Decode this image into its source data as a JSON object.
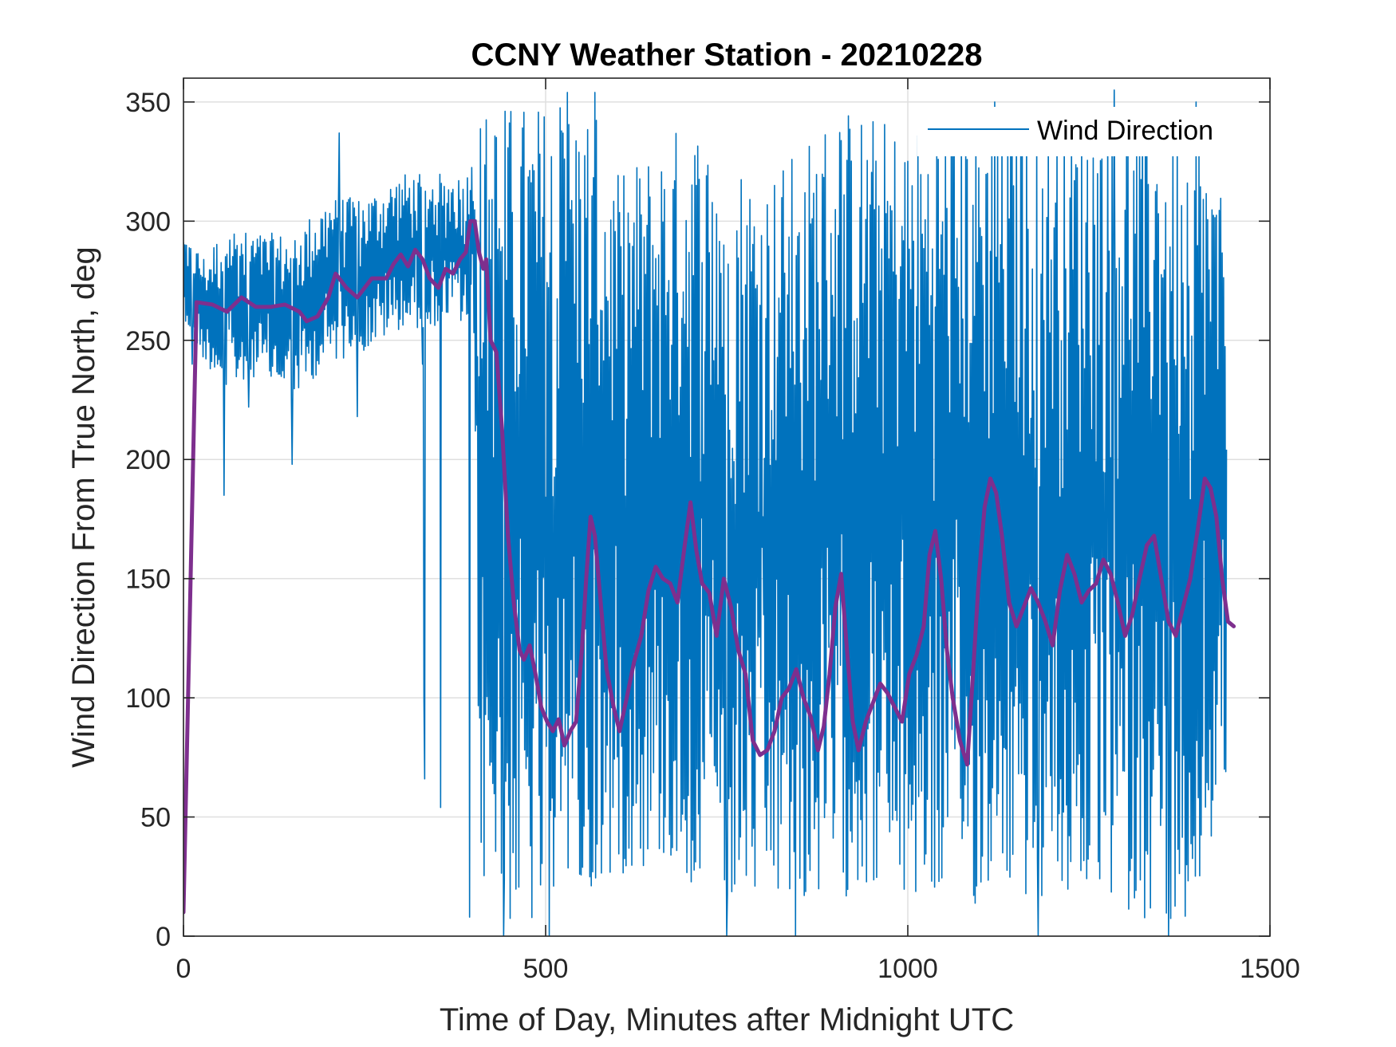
{
  "chart_data": {
    "type": "line",
    "title": "CCNY Weather Station - 20210228",
    "xlabel": "Time of Day, Minutes after Midnight UTC",
    "ylabel": "Wind Direction From True North, deg",
    "xlim": [
      0,
      1500
    ],
    "ylim": [
      0,
      360
    ],
    "xticks": [
      0,
      500,
      1000,
      1500
    ],
    "yticks": [
      0,
      50,
      100,
      150,
      200,
      250,
      300,
      350
    ],
    "grid": true,
    "legend_position": "top-right",
    "series": [
      {
        "name": "Wind Direction",
        "color": "#0072BD",
        "style": "thin",
        "envelope": [
          [
            0,
            260,
            295
          ],
          [
            30,
            240,
            285
          ],
          [
            60,
            230,
            300
          ],
          [
            100,
            235,
            295
          ],
          [
            150,
            225,
            295
          ],
          [
            200,
            240,
            310
          ],
          [
            250,
            245,
            310
          ],
          [
            300,
            255,
            320
          ],
          [
            340,
            255,
            320
          ],
          [
            370,
            260,
            320
          ],
          [
            390,
            255,
            320
          ],
          [
            400,
            250,
            330
          ],
          [
            410,
            20,
            345
          ],
          [
            440,
            5,
            350
          ],
          [
            480,
            0,
            350
          ],
          [
            520,
            5,
            350
          ],
          [
            560,
            10,
            350
          ],
          [
            600,
            25,
            320
          ],
          [
            660,
            30,
            335
          ],
          [
            700,
            20,
            345
          ],
          [
            760,
            10,
            330
          ],
          [
            800,
            10,
            320
          ],
          [
            850,
            10,
            330
          ],
          [
            900,
            15,
            350
          ],
          [
            950,
            20,
            345
          ],
          [
            1000,
            10,
            340
          ],
          [
            1050,
            15,
            345
          ],
          [
            1100,
            10,
            350
          ],
          [
            1150,
            15,
            350
          ],
          [
            1200,
            10,
            345
          ],
          [
            1250,
            15,
            350
          ],
          [
            1300,
            10,
            345
          ],
          [
            1350,
            5,
            350
          ],
          [
            1400,
            10,
            350
          ],
          [
            1440,
            60,
            300
          ]
        ],
        "spikes": [
          [
            12,
            240
          ],
          [
            56,
            185
          ],
          [
            90,
            222
          ],
          [
            150,
            198
          ],
          [
            215,
            337
          ],
          [
            240,
            218
          ],
          [
            330,
            325
          ],
          [
            330,
            240
          ],
          [
            332,
            99
          ],
          [
            333,
            66
          ],
          [
            355,
            54
          ],
          [
            395,
            8
          ],
          [
            442,
            0
          ],
          [
            505,
            0
          ],
          [
            530,
            354
          ],
          [
            568,
            354
          ],
          [
            750,
            0
          ],
          [
            845,
            0
          ],
          [
            1120,
            350
          ],
          [
            1180,
            0
          ],
          [
            1285,
            355
          ],
          [
            1360,
            0
          ],
          [
            1398,
            350
          ]
        ]
      },
      {
        "name": "",
        "color": "#7E2F8E",
        "style": "thick",
        "points": [
          [
            0,
            10
          ],
          [
            18,
            266
          ],
          [
            40,
            265
          ],
          [
            60,
            262
          ],
          [
            80,
            268
          ],
          [
            100,
            264
          ],
          [
            120,
            264
          ],
          [
            140,
            265
          ],
          [
            160,
            262
          ],
          [
            170,
            258
          ],
          [
            185,
            260
          ],
          [
            200,
            268
          ],
          [
            210,
            278
          ],
          [
            225,
            272
          ],
          [
            240,
            268
          ],
          [
            260,
            276
          ],
          [
            280,
            276
          ],
          [
            290,
            282
          ],
          [
            300,
            286
          ],
          [
            310,
            281
          ],
          [
            320,
            288
          ],
          [
            330,
            284
          ],
          [
            340,
            276
          ],
          [
            352,
            272
          ],
          [
            362,
            280
          ],
          [
            372,
            278
          ],
          [
            382,
            284
          ],
          [
            390,
            287
          ],
          [
            396,
            300
          ],
          [
            402,
            300
          ],
          [
            408,
            287
          ],
          [
            414,
            280
          ],
          [
            418,
            284
          ],
          [
            424,
            250
          ],
          [
            432,
            245
          ],
          [
            440,
            212
          ],
          [
            448,
            168
          ],
          [
            456,
            140
          ],
          [
            464,
            120
          ],
          [
            470,
            116
          ],
          [
            478,
            122
          ],
          [
            486,
            110
          ],
          [
            494,
            96
          ],
          [
            502,
            90
          ],
          [
            510,
            86
          ],
          [
            518,
            91
          ],
          [
            526,
            80
          ],
          [
            534,
            86
          ],
          [
            542,
            90
          ],
          [
            550,
            120
          ],
          [
            556,
            150
          ],
          [
            562,
            176
          ],
          [
            568,
            168
          ],
          [
            576,
            140
          ],
          [
            584,
            112
          ],
          [
            594,
            96
          ],
          [
            602,
            86
          ],
          [
            612,
            100
          ],
          [
            622,
            115
          ],
          [
            632,
            126
          ],
          [
            642,
            145
          ],
          [
            652,
            155
          ],
          [
            662,
            150
          ],
          [
            672,
            148
          ],
          [
            682,
            140
          ],
          [
            692,
            164
          ],
          [
            700,
            182
          ],
          [
            708,
            162
          ],
          [
            716,
            148
          ],
          [
            726,
            144
          ],
          [
            736,
            126
          ],
          [
            746,
            150
          ],
          [
            756,
            138
          ],
          [
            766,
            120
          ],
          [
            776,
            110
          ],
          [
            786,
            82
          ],
          [
            796,
            76
          ],
          [
            806,
            78
          ],
          [
            816,
            86
          ],
          [
            826,
            100
          ],
          [
            836,
            104
          ],
          [
            846,
            112
          ],
          [
            856,
            100
          ],
          [
            866,
            92
          ],
          [
            876,
            78
          ],
          [
            884,
            88
          ],
          [
            892,
            110
          ],
          [
            900,
            138
          ],
          [
            908,
            152
          ],
          [
            916,
            120
          ],
          [
            924,
            90
          ],
          [
            932,
            78
          ],
          [
            942,
            90
          ],
          [
            952,
            98
          ],
          [
            962,
            106
          ],
          [
            972,
            102
          ],
          [
            982,
            96
          ],
          [
            992,
            90
          ],
          [
            1002,
            110
          ],
          [
            1012,
            118
          ],
          [
            1022,
            130
          ],
          [
            1030,
            160
          ],
          [
            1038,
            170
          ],
          [
            1046,
            150
          ],
          [
            1054,
            120
          ],
          [
            1062,
            100
          ],
          [
            1072,
            82
          ],
          [
            1082,
            72
          ],
          [
            1090,
            110
          ],
          [
            1098,
            150
          ],
          [
            1106,
            180
          ],
          [
            1114,
            192
          ],
          [
            1122,
            186
          ],
          [
            1130,
            168
          ],
          [
            1140,
            140
          ],
          [
            1150,
            130
          ],
          [
            1160,
            138
          ],
          [
            1170,
            146
          ],
          [
            1180,
            140
          ],
          [
            1190,
            132
          ],
          [
            1200,
            122
          ],
          [
            1210,
            145
          ],
          [
            1220,
            160
          ],
          [
            1230,
            152
          ],
          [
            1240,
            140
          ],
          [
            1250,
            145
          ],
          [
            1260,
            148
          ],
          [
            1270,
            158
          ],
          [
            1280,
            152
          ],
          [
            1290,
            140
          ],
          [
            1300,
            126
          ],
          [
            1310,
            135
          ],
          [
            1320,
            150
          ],
          [
            1330,
            164
          ],
          [
            1340,
            168
          ],
          [
            1350,
            150
          ],
          [
            1360,
            132
          ],
          [
            1370,
            126
          ],
          [
            1380,
            138
          ],
          [
            1390,
            150
          ],
          [
            1400,
            170
          ],
          [
            1410,
            192
          ],
          [
            1418,
            188
          ],
          [
            1426,
            176
          ],
          [
            1434,
            150
          ],
          [
            1442,
            132
          ],
          [
            1450,
            130
          ]
        ]
      }
    ]
  }
}
